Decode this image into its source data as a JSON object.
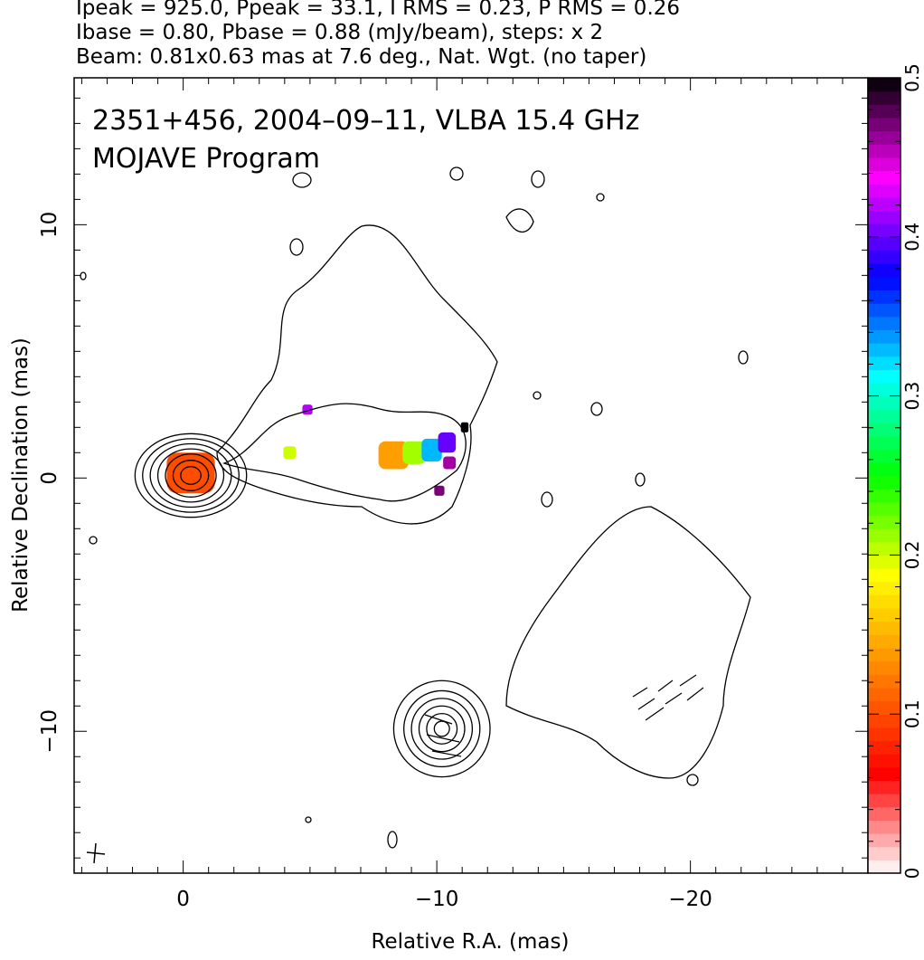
{
  "header": {
    "line1": "Ipeak = 925.0, Ppeak = 33.1, I RMS = 0.23, P RMS = 0.26",
    "line2": "Ibase = 0.80, Pbase = 0.88 (mJy/beam), steps: x 2",
    "line3": "Beam: 0.81x0.63 mas at 7.6 deg., Nat. Wgt. (no taper)"
  },
  "chart_data": {
    "type": "heatmap",
    "title_line1": "2351+456, 2004–09–11, VLBA 15.4 GHz",
    "title_line2": "MOJAVE Program",
    "xlabel": "Relative R.A. (mas)",
    "ylabel": "Relative Declination (mas)",
    "xlim": [
      4.3,
      -27.0
    ],
    "ylim": [
      -15.6,
      15.8
    ],
    "x_ticks": [
      0,
      -10,
      -20
    ],
    "x_tick_labels": [
      "0",
      "−10",
      "−20"
    ],
    "y_ticks": [
      -10,
      0,
      10
    ],
    "y_tick_labels": [
      "−10",
      "0",
      "10"
    ],
    "colorbar": {
      "range": [
        0,
        0.5
      ],
      "ticks": [
        0,
        0.1,
        0.2,
        0.3,
        0.4,
        0.5
      ],
      "tick_labels": [
        "0",
        "0.1",
        "0.2",
        "0.3",
        "0.4",
        "0.5"
      ],
      "colors": [
        "#ffffff",
        "#ff0000",
        "#ff8000",
        "#ffff00",
        "#00ff00",
        "#00ffff",
        "#0000ff",
        "#ff00ff",
        "#000000"
      ]
    },
    "contours": [
      {
        "component": "core",
        "x": -0.3,
        "y": 0.1,
        "rx": [
          0.4,
          0.7,
          1.0,
          1.3,
          1.6,
          1.9,
          2.2
        ],
        "ry": [
          0.35,
          0.6,
          0.85,
          1.05,
          1.25,
          1.45,
          1.65
        ]
      },
      {
        "component": "knot",
        "x": -10.2,
        "y": -9.9,
        "rx": [
          0.3,
          0.6,
          0.9,
          1.2,
          1.5,
          1.9
        ],
        "ry": [
          0.3,
          0.6,
          0.9,
          1.2,
          1.5,
          1.9
        ]
      }
    ],
    "polarization_patches": [
      {
        "x": -0.3,
        "y": 0.2,
        "w": 1.9,
        "h": 1.6,
        "frac": 0.1
      },
      {
        "x": -4.2,
        "y": 1.0,
        "w": 0.5,
        "h": 0.5,
        "frac": 0.2
      },
      {
        "x": -4.9,
        "y": 2.7,
        "w": 0.4,
        "h": 0.4,
        "frac": 0.42
      },
      {
        "x": -8.3,
        "y": 0.9,
        "w": 1.2,
        "h": 1.1,
        "frac": 0.14
      },
      {
        "x": -9.1,
        "y": 1.0,
        "w": 0.9,
        "h": 0.9,
        "frac": 0.21
      },
      {
        "x": -9.8,
        "y": 1.1,
        "w": 0.8,
        "h": 0.9,
        "frac": 0.33
      },
      {
        "x": -10.4,
        "y": 1.4,
        "w": 0.7,
        "h": 0.8,
        "frac": 0.4
      },
      {
        "x": -10.5,
        "y": 0.6,
        "w": 0.5,
        "h": 0.5,
        "frac": 0.46
      },
      {
        "x": -11.1,
        "y": 2.0,
        "w": 0.3,
        "h": 0.4,
        "frac": 0.5
      },
      {
        "x": -10.1,
        "y": -0.5,
        "w": 0.4,
        "h": 0.4,
        "frac": 0.47
      }
    ]
  }
}
